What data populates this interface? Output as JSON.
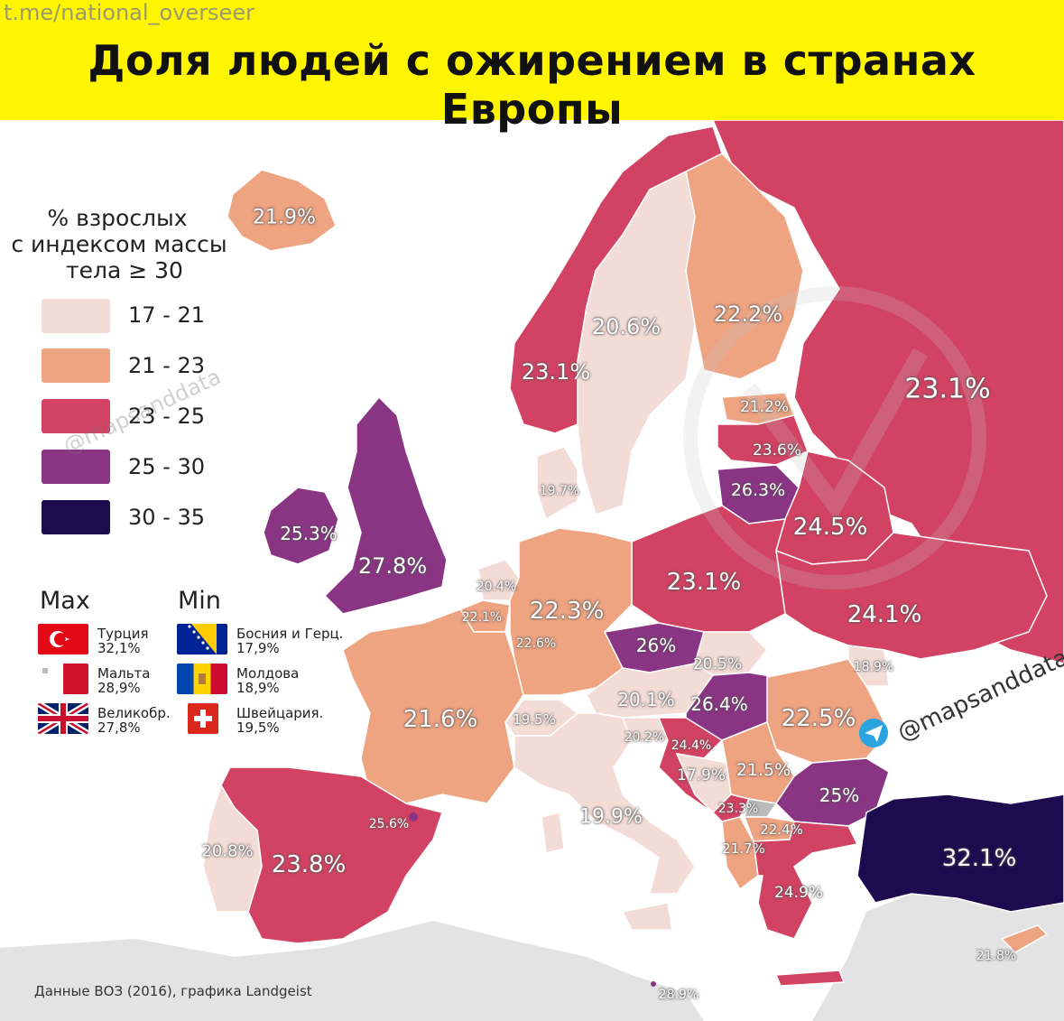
{
  "header": {
    "channel": "t.me/national_overseer",
    "title": "Доля людей с ожирением в странах Европы"
  },
  "legend": {
    "title_lines": [
      "% взрослых",
      "с индексом массы",
      "тела ≥ 30"
    ],
    "bins": [
      {
        "label": "17 - 21",
        "color": "#f3dcd6"
      },
      {
        "label": "21 - 23",
        "color": "#eea381"
      },
      {
        "label": "23 - 25",
        "color": "#d24363"
      },
      {
        "label": "25 - 30",
        "color": "#8a3584"
      },
      {
        "label": "30 - 35",
        "color": "#1c0b4f"
      }
    ]
  },
  "maxmin": {
    "max_title": "Max",
    "min_title": "Min",
    "max": [
      {
        "country": "Турция",
        "value": "32,1%"
      },
      {
        "country": "Мальта",
        "value": "28,9%"
      },
      {
        "country": "Великобр.",
        "value": "27,8%"
      }
    ],
    "min": [
      {
        "country": "Босния и Герц.",
        "value": "17,9%"
      },
      {
        "country": "Молдова",
        "value": "18,9%"
      },
      {
        "country": "Швейцария.",
        "value": "19,5%"
      }
    ]
  },
  "countries": [
    {
      "name": "Iceland",
      "value": "21.9%"
    },
    {
      "name": "Norway",
      "value": "23.1%"
    },
    {
      "name": "Sweden",
      "value": "20.6%"
    },
    {
      "name": "Finland",
      "value": "22.2%"
    },
    {
      "name": "Russia",
      "value": "23.1%"
    },
    {
      "name": "Estonia",
      "value": "21.2%"
    },
    {
      "name": "Latvia",
      "value": "23.6%"
    },
    {
      "name": "Lithuania",
      "value": "26.3%"
    },
    {
      "name": "Belarus",
      "value": "24.5%"
    },
    {
      "name": "Denmark",
      "value": "19.7%"
    },
    {
      "name": "Ireland",
      "value": "25.3%"
    },
    {
      "name": "United Kingdom",
      "value": "27.8%"
    },
    {
      "name": "Netherlands",
      "value": "20.4%"
    },
    {
      "name": "Belgium",
      "value": "22.1%"
    },
    {
      "name": "Luxembourg",
      "value": "22.6%"
    },
    {
      "name": "Germany",
      "value": "22.3%"
    },
    {
      "name": "Poland",
      "value": "23.1%"
    },
    {
      "name": "Ukraine",
      "value": "24.1%"
    },
    {
      "name": "Czechia",
      "value": "26%"
    },
    {
      "name": "Slovakia",
      "value": "20.5%"
    },
    {
      "name": "Moldova",
      "value": "18.9%"
    },
    {
      "name": "France",
      "value": "21.6%"
    },
    {
      "name": "Switzerland",
      "value": "19.5%"
    },
    {
      "name": "Austria",
      "value": "20.1%"
    },
    {
      "name": "Hungary",
      "value": "26.4%"
    },
    {
      "name": "Romania",
      "value": "22.5%"
    },
    {
      "name": "Slovenia",
      "value": "20.2%"
    },
    {
      "name": "Croatia",
      "value": "24.4%"
    },
    {
      "name": "Bosnia",
      "value": "17.9%"
    },
    {
      "name": "Serbia",
      "value": "21.5%"
    },
    {
      "name": "Bulgaria",
      "value": "25%"
    },
    {
      "name": "Montenegro",
      "value": "23.3%"
    },
    {
      "name": "North Macedonia",
      "value": "22.4%"
    },
    {
      "name": "Albania",
      "value": "21.7%"
    },
    {
      "name": "Greece",
      "value": "24.9%"
    },
    {
      "name": "Turkey",
      "value": "32.1%"
    },
    {
      "name": "Italy",
      "value": "19.9%"
    },
    {
      "name": "Andorra",
      "value": "25.6%"
    },
    {
      "name": "Portugal",
      "value": "20.8%"
    },
    {
      "name": "Spain",
      "value": "23.8%"
    },
    {
      "name": "Cyprus",
      "value": "21.8%"
    },
    {
      "name": "Malta",
      "value": "28.9%"
    }
  ],
  "source": "Данные ВОЗ (2016), графика Landgeist",
  "watermarks": {
    "tg": "@mapsanddata",
    "faint": "@mapsanddata"
  }
}
